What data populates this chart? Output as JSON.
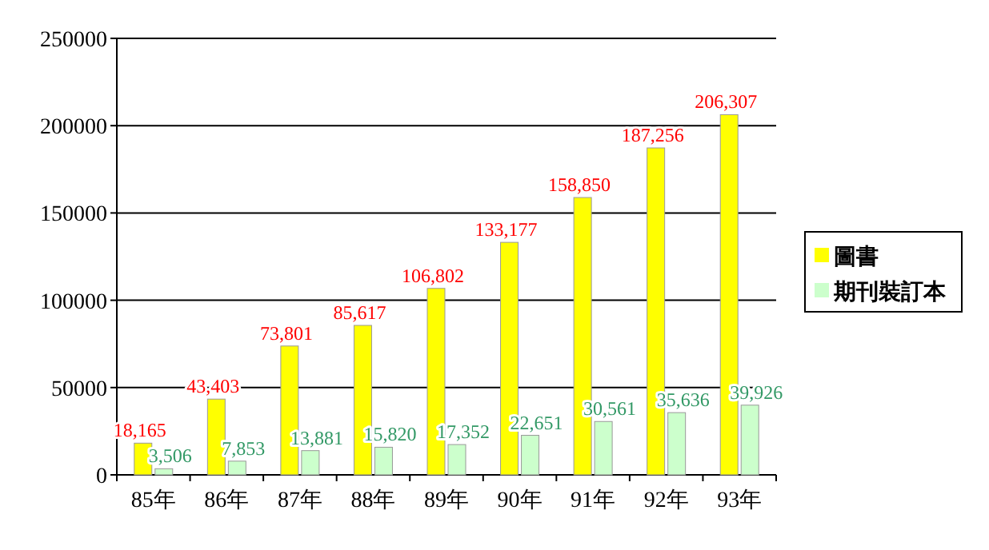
{
  "chart_data": {
    "type": "bar",
    "categories": [
      "85年",
      "86年",
      "87年",
      "88年",
      "89年",
      "90年",
      "91年",
      "92年",
      "93年"
    ],
    "series": [
      {
        "name": "圖書",
        "color": "#ffff00",
        "values": [
          18165,
          43403,
          73801,
          85617,
          106802,
          133177,
          158850,
          187256,
          206307
        ],
        "value_labels": [
          "18,165",
          "43,403",
          "73,801",
          "85,617",
          "106,802",
          "133,177",
          "158,850",
          "187,256",
          "206,307"
        ]
      },
      {
        "name": "期刊裝訂本",
        "color": "#ccffcc",
        "values": [
          3506,
          7853,
          13881,
          15820,
          17352,
          22651,
          30561,
          35636,
          39926
        ],
        "value_labels": [
          "3,506",
          "7,853",
          "13,881",
          "15,820",
          "17,352",
          "22,651",
          "30,561",
          "35,636",
          "39,926"
        ]
      }
    ],
    "ylim": [
      0,
      250000
    ],
    "yticks": [
      0,
      50000,
      100000,
      150000,
      200000,
      250000
    ],
    "grid": "y",
    "legend": "right"
  }
}
